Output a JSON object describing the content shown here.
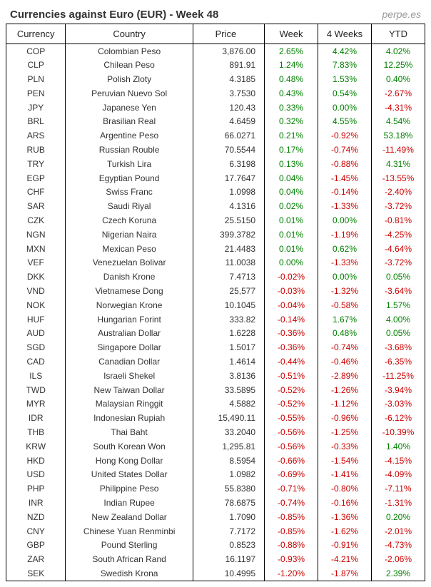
{
  "title": "Currencies against Euro (EUR) - Week 48",
  "source": "perpe.es",
  "columns": [
    "Currency",
    "Country",
    "Price",
    "Week",
    "4 Weeks",
    "YTD"
  ],
  "rows": [
    {
      "cur": "COP",
      "country": "Colombian Peso",
      "price": "3,876.00",
      "week": "2.65%",
      "w4": "4.42%",
      "ytd": "4.02%"
    },
    {
      "cur": "CLP",
      "country": "Chilean Peso",
      "price": "891.91",
      "week": "1.24%",
      "w4": "7.83%",
      "ytd": "12.25%"
    },
    {
      "cur": "PLN",
      "country": "Polish Zloty",
      "price": "4.3185",
      "week": "0.48%",
      "w4": "1.53%",
      "ytd": "0.40%"
    },
    {
      "cur": "PEN",
      "country": "Peruvian Nuevo Sol",
      "price": "3.7530",
      "week": "0.43%",
      "w4": "0.54%",
      "ytd": "-2.67%"
    },
    {
      "cur": "JPY",
      "country": "Japanese Yen",
      "price": "120.43",
      "week": "0.33%",
      "w4": "0.00%",
      "ytd": "-4.31%"
    },
    {
      "cur": "BRL",
      "country": "Brasilian Real",
      "price": "4.6459",
      "week": "0.32%",
      "w4": "4.55%",
      "ytd": "4.54%"
    },
    {
      "cur": "ARS",
      "country": "Argentine Peso",
      "price": "66.0271",
      "week": "0.21%",
      "w4": "-0.92%",
      "ytd": "53.18%"
    },
    {
      "cur": "RUB",
      "country": "Russian Rouble",
      "price": "70.5544",
      "week": "0.17%",
      "w4": "-0.74%",
      "ytd": "-11.49%"
    },
    {
      "cur": "TRY",
      "country": "Turkish Lira",
      "price": "6.3198",
      "week": "0.13%",
      "w4": "-0.88%",
      "ytd": "4.31%"
    },
    {
      "cur": "EGP",
      "country": "Egyptian Pound",
      "price": "17.7647",
      "week": "0.04%",
      "w4": "-1.45%",
      "ytd": "-13.55%"
    },
    {
      "cur": "CHF",
      "country": "Swiss Franc",
      "price": "1.0998",
      "week": "0.04%",
      "w4": "-0.14%",
      "ytd": "-2.40%"
    },
    {
      "cur": "SAR",
      "country": "Saudi Riyal",
      "price": "4.1316",
      "week": "0.02%",
      "w4": "-1.33%",
      "ytd": "-3.72%"
    },
    {
      "cur": "CZK",
      "country": "Czech Koruna",
      "price": "25.5150",
      "week": "0.01%",
      "w4": "0.00%",
      "ytd": "-0.81%"
    },
    {
      "cur": "NGN",
      "country": "Nigerian Naira",
      "price": "399.3782",
      "week": "0.01%",
      "w4": "-1.19%",
      "ytd": "-4.25%"
    },
    {
      "cur": "MXN",
      "country": "Mexican Peso",
      "price": "21.4483",
      "week": "0.01%",
      "w4": "0.62%",
      "ytd": "-4.64%"
    },
    {
      "cur": "VEF",
      "country": "Venezuelan Bolivar",
      "price": "11.0038",
      "week": "0.00%",
      "w4": "-1.33%",
      "ytd": "-3.72%"
    },
    {
      "cur": "DKK",
      "country": "Danish Krone",
      "price": "7.4713",
      "week": "-0.02%",
      "w4": "0.00%",
      "ytd": "0.05%"
    },
    {
      "cur": "VND",
      "country": "Vietnamese Dong",
      "price": "25,577",
      "week": "-0.03%",
      "w4": "-1.32%",
      "ytd": "-3.64%"
    },
    {
      "cur": "NOK",
      "country": "Norwegian Krone",
      "price": "10.1045",
      "week": "-0.04%",
      "w4": "-0.58%",
      "ytd": "1.57%"
    },
    {
      "cur": "HUF",
      "country": "Hungarian Forint",
      "price": "333.82",
      "week": "-0.14%",
      "w4": "1.67%",
      "ytd": "4.00%"
    },
    {
      "cur": "AUD",
      "country": "Australian Dollar",
      "price": "1.6228",
      "week": "-0.36%",
      "w4": "0.48%",
      "ytd": "0.05%"
    },
    {
      "cur": "SGD",
      "country": "Singapore Dollar",
      "price": "1.5017",
      "week": "-0.36%",
      "w4": "-0.74%",
      "ytd": "-3.68%"
    },
    {
      "cur": "CAD",
      "country": "Canadian Dollar",
      "price": "1.4614",
      "week": "-0.44%",
      "w4": "-0.46%",
      "ytd": "-6.35%"
    },
    {
      "cur": "ILS",
      "country": "Israeli Shekel",
      "price": "3.8136",
      "week": "-0.51%",
      "w4": "-2.89%",
      "ytd": "-11.25%"
    },
    {
      "cur": "TWD",
      "country": "New Taiwan Dollar",
      "price": "33.5895",
      "week": "-0.52%",
      "w4": "-1.26%",
      "ytd": "-3.94%"
    },
    {
      "cur": "MYR",
      "country": "Malaysian Ringgit",
      "price": "4.5882",
      "week": "-0.52%",
      "w4": "-1.12%",
      "ytd": "-3.03%"
    },
    {
      "cur": "IDR",
      "country": "Indonesian Rupiah",
      "price": "15,490.11",
      "week": "-0.55%",
      "w4": "-0.96%",
      "ytd": "-6.12%"
    },
    {
      "cur": "THB",
      "country": "Thai Baht",
      "price": "33.2040",
      "week": "-0.56%",
      "w4": "-1.25%",
      "ytd": "-10.39%"
    },
    {
      "cur": "KRW",
      "country": "South Korean Won",
      "price": "1,295.81",
      "week": "-0.56%",
      "w4": "-0.33%",
      "ytd": "1.40%"
    },
    {
      "cur": "HKD",
      "country": "Hong Kong Dollar",
      "price": "8.5954",
      "week": "-0.66%",
      "w4": "-1.54%",
      "ytd": "-4.15%"
    },
    {
      "cur": "USD",
      "country": "United States Dollar",
      "price": "1.0982",
      "week": "-0.69%",
      "w4": "-1.41%",
      "ytd": "-4.09%"
    },
    {
      "cur": "PHP",
      "country": "Philippine Peso",
      "price": "55.8380",
      "week": "-0.71%",
      "w4": "-0.80%",
      "ytd": "-7.11%"
    },
    {
      "cur": "INR",
      "country": "Indian Rupee",
      "price": "78.6875",
      "week": "-0.74%",
      "w4": "-0.16%",
      "ytd": "-1.31%"
    },
    {
      "cur": "NZD",
      "country": "New Zealand Dollar",
      "price": "1.7090",
      "week": "-0.85%",
      "w4": "-1.36%",
      "ytd": "0.20%"
    },
    {
      "cur": "CNY",
      "country": "Chinese Yuan Renminbi",
      "price": "7.7172",
      "week": "-0.85%",
      "w4": "-1.62%",
      "ytd": "-2.01%"
    },
    {
      "cur": "GBP",
      "country": "Pound Sterling",
      "price": "0.8523",
      "week": "-0.88%",
      "w4": "-0.91%",
      "ytd": "-4.73%"
    },
    {
      "cur": "ZAR",
      "country": "South African Rand",
      "price": "16.1197",
      "week": "-0.93%",
      "w4": "-4.21%",
      "ytd": "-2.06%"
    },
    {
      "cur": "SEK",
      "country": "Swedish Krona",
      "price": "10.4995",
      "week": "-1.20%",
      "w4": "-1.87%",
      "ytd": "2.39%"
    }
  ],
  "style": {
    "pos_color": "#008000",
    "neg_color": "#cc0000",
    "text_color": "#333333",
    "border_color": "#000000",
    "background": "#ffffff",
    "font_family": "Verdana, Geneva, sans-serif",
    "title_fontsize": 15,
    "header_fontsize": 13,
    "cell_fontsize": 12
  }
}
